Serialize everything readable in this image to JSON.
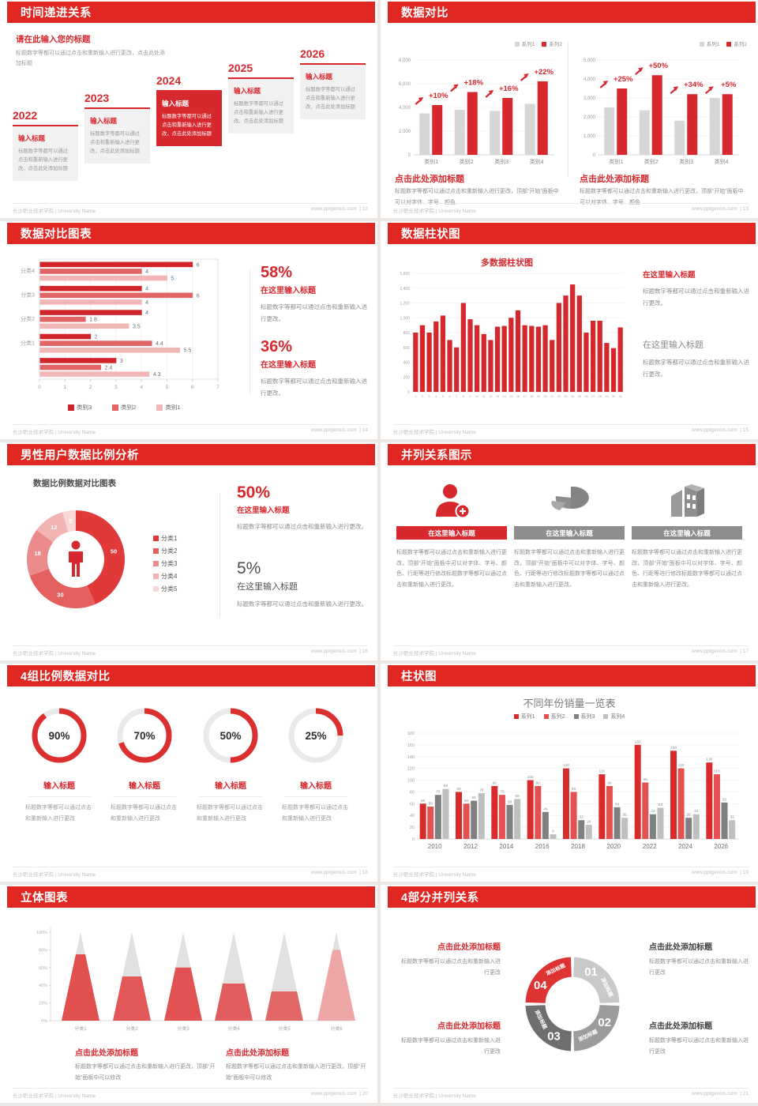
{
  "footer": {
    "left": "长沙职业技术学院 | University Name",
    "site": "www.pptgenius.com",
    "sep": "|"
  },
  "slides": [
    {
      "title": "时间递进关系",
      "page": "12",
      "intro_title": "请在此输入您的标题",
      "intro_body": "标题数字等都可以通过点击和重新输入进行更改，点击此处添加标题",
      "years": [
        "2022",
        "2023",
        "2024",
        "2025",
        "2026"
      ],
      "item_title": "输入标题",
      "item_body": "标题数字等都可以通过点击和重新输入进行更改，点击此处添加标题"
    },
    {
      "title": "数据对比",
      "page": "13",
      "heading": "点击此处添加标题",
      "body": "标题数字等都可以通过点击和重新输入进行更改，顶部“开始”面板中可以对字体、字号、颜色"
    },
    {
      "title": "数据对比图表",
      "page": "14",
      "stats": [
        {
          "value": "58%",
          "title": "在这里输入标题",
          "body": "标题数字等都可以通过点击和重新输入进行更改。"
        },
        {
          "value": "36%",
          "title": "在这里输入标题",
          "body": "标题数字等都可以通过点击和重新输入进行更改。"
        }
      ]
    },
    {
      "title": "数据柱状图",
      "page": "15",
      "chart_title": "多数据柱状图",
      "blocks": [
        {
          "title": "在这里输入标题",
          "body": "标题数字等都可以通过点击和重新输入进行更改。"
        },
        {
          "title": "在这里输入标题",
          "body": "标题数字等都可以通过点击和重新输入进行更改。"
        }
      ]
    },
    {
      "title": "男性用户数据比例分析",
      "page": "16",
      "chart_title": "数据比例数据对比图表",
      "stats": [
        {
          "value": "50%",
          "title": "在这里输入标题",
          "body": "标题数字等都可以通过点击和重新输入进行更改。"
        },
        {
          "value": "5%",
          "title": "在这里输入标题",
          "body": "标题数字等都可以通过点击和重新输入进行更改。"
        }
      ]
    },
    {
      "title": "并列关系图示",
      "page": "17",
      "heading": "在这里输入标题",
      "body": "标题数字等都可以通过点击和重新输入进行更改，顶部“开始”面板中可以对字体、字号、颜色、行距等进行修改标题数字等都可以通过点击和重新输入进行更改。"
    },
    {
      "title": "4组比例数据对比",
      "page": "18",
      "item_title": "输入标题",
      "item_body": "标题数字等都可以通过点击和重新输入进行更改"
    },
    {
      "title": "柱状图",
      "page": "19",
      "chart_title": "不同年份销量一览表"
    },
    {
      "title": "立体图表",
      "page": "20",
      "heading": "点击此处添加标题",
      "body": "标题数字等都可以通过点击和重新输入进行更改，顶部“开始”面板中可以修改"
    },
    {
      "title": "4部分并列关系",
      "page": "21",
      "heading": "点击此处添加标题",
      "body": "标题数字等都可以通过点击和重新输入进行更改"
    }
  ],
  "chart_data": [
    {
      "id": "compare-left",
      "type": "bar",
      "categories": [
        "类别1",
        "类别2",
        "类别3",
        "类别4"
      ],
      "series": [
        {
          "name": "系列1",
          "color": "#d6d6d6",
          "values": [
            3500,
            3800,
            3700,
            4300
          ]
        },
        {
          "name": "系列2",
          "color": "#d7282e",
          "values": [
            4200,
            5300,
            4800,
            6200
          ]
        }
      ],
      "annotations": [
        "+10%",
        "+18%",
        "+16%",
        "+22%"
      ],
      "ylim": [
        0,
        8000
      ],
      "ytick_step": 2000,
      "legend_position": "top-right",
      "grid": true
    },
    {
      "id": "compare-right",
      "type": "bar",
      "categories": [
        "类别1",
        "类别2",
        "类别3",
        "类别4"
      ],
      "series": [
        {
          "name": "系列1",
          "color": "#d6d6d6",
          "values": [
            2500,
            2350,
            1800,
            3000
          ]
        },
        {
          "name": "系列2",
          "color": "#d7282e",
          "values": [
            3500,
            4200,
            3200,
            3200
          ]
        }
      ],
      "annotations": [
        "+25%",
        "+50%",
        "+34%",
        "+5%"
      ],
      "ylim": [
        0,
        5000
      ],
      "ytick_step": 1000,
      "legend_position": "top-right",
      "grid": true
    },
    {
      "id": "hbar-compare",
      "type": "bar-horizontal",
      "groups": [
        "分类4",
        "分类3",
        "分类2",
        "分类1",
        ""
      ],
      "series": [
        {
          "name": "类别3",
          "color": "#d2252b",
          "values": [
            6,
            4,
            4,
            2,
            3
          ]
        },
        {
          "name": "类别2",
          "color": "#e26565",
          "values": [
            4,
            6,
            1.8,
            4.4,
            2.4
          ]
        },
        {
          "name": "类别1",
          "color": "#f1b6b6",
          "values": [
            5,
            4,
            3.5,
            5.5,
            4.3
          ]
        }
      ],
      "xlim": [
        0,
        7
      ],
      "xticks": [
        0,
        1,
        2,
        3,
        4,
        5,
        6,
        7
      ],
      "legend_position": "bottom"
    },
    {
      "id": "multi-bar",
      "type": "bar",
      "title": "多数据柱状图",
      "color": "#d4282c",
      "x": [
        1,
        2,
        3,
        4,
        5,
        6,
        7,
        8,
        9,
        10,
        11,
        12,
        13,
        14,
        15,
        16,
        17,
        18,
        19,
        20,
        21,
        22,
        23,
        24,
        25,
        26,
        27,
        28,
        29,
        30,
        31
      ],
      "values": [
        800,
        900,
        800,
        950,
        1030,
        700,
        600,
        1200,
        980,
        900,
        780,
        700,
        880,
        890,
        1000,
        1100,
        900,
        890,
        880,
        900,
        700,
        1200,
        1300,
        1450,
        1300,
        800,
        960,
        960,
        660,
        590,
        870
      ],
      "ylim": [
        0,
        1600
      ],
      "ytick_labels": [
        "1,600",
        "1,400",
        "1,200",
        "1,000",
        "800",
        "600",
        "400",
        "200",
        "0"
      ]
    },
    {
      "id": "male-donut",
      "type": "pie-donut",
      "title": "数据比例数据对比图表",
      "labels": [
        "分类1",
        "分类2",
        "分类3",
        "分类4",
        "分类5"
      ],
      "values": [
        50,
        30,
        18,
        12,
        5
      ],
      "colors": [
        "#e1383a",
        "#e4605e",
        "#eb8b8b",
        "#f2b3b3",
        "#f8d7d7"
      ],
      "legend_position": "right"
    },
    {
      "id": "rings",
      "type": "progress-rings",
      "values": [
        90,
        70,
        50,
        25
      ],
      "labels": [
        "90%",
        "70%",
        "50%",
        "25%"
      ],
      "color": "#dc2f2f",
      "track": "#e9e9e9"
    },
    {
      "id": "year-sales",
      "type": "bar",
      "title": "不同年份销量一览表",
      "categories": [
        "2010",
        "2012",
        "2014",
        "2016",
        "2018",
        "2020",
        "2022",
        "2024",
        "2026"
      ],
      "series": [
        {
          "name": "系列1",
          "color": "#d92b2b",
          "values": [
            60,
            80,
            90,
            100,
            120,
            110,
            160,
            150,
            130
          ]
        },
        {
          "name": "系列2",
          "color": "#e45150",
          "values": [
            55,
            60,
            75,
            90,
            80,
            90,
            96,
            120,
            110
          ]
        },
        {
          "name": "系列3",
          "color": "#808080",
          "values": [
            75,
            65,
            58,
            46,
            32,
            54,
            42,
            36,
            62
          ]
        },
        {
          "name": "系列4",
          "color": "#bfbfbf",
          "values": [
            85,
            78,
            68,
            8,
            24,
            36,
            53,
            42,
            32
          ]
        }
      ],
      "ylim": [
        0,
        180
      ],
      "ytick_step": 20,
      "legend_position": "top",
      "grid": true
    },
    {
      "id": "cones",
      "type": "cone-3d",
      "categories": [
        "分类1",
        "分类2",
        "分类3",
        "分类4",
        "分类5",
        "分类6"
      ],
      "values_percent": [
        75,
        50,
        60,
        42,
        33,
        80
      ],
      "colors": [
        "#e24747",
        "#e24f4f",
        "#e24a4a",
        "#e25656",
        "#e26161",
        "#efa2a2"
      ],
      "yticks": [
        "100%",
        "80%",
        "60%",
        "40%",
        "20%",
        "0%"
      ]
    },
    {
      "id": "cycle",
      "type": "cycle-4",
      "segments": [
        {
          "num": "01",
          "label": "添加标题",
          "color": "#c9c9c9"
        },
        {
          "num": "02",
          "label": "添加标题",
          "color": "#9c9c9c"
        },
        {
          "num": "03",
          "label": "添加标题",
          "color": "#6e6e6e"
        },
        {
          "num": "04",
          "label": "添加标题",
          "color": "#dd3333"
        }
      ]
    }
  ]
}
